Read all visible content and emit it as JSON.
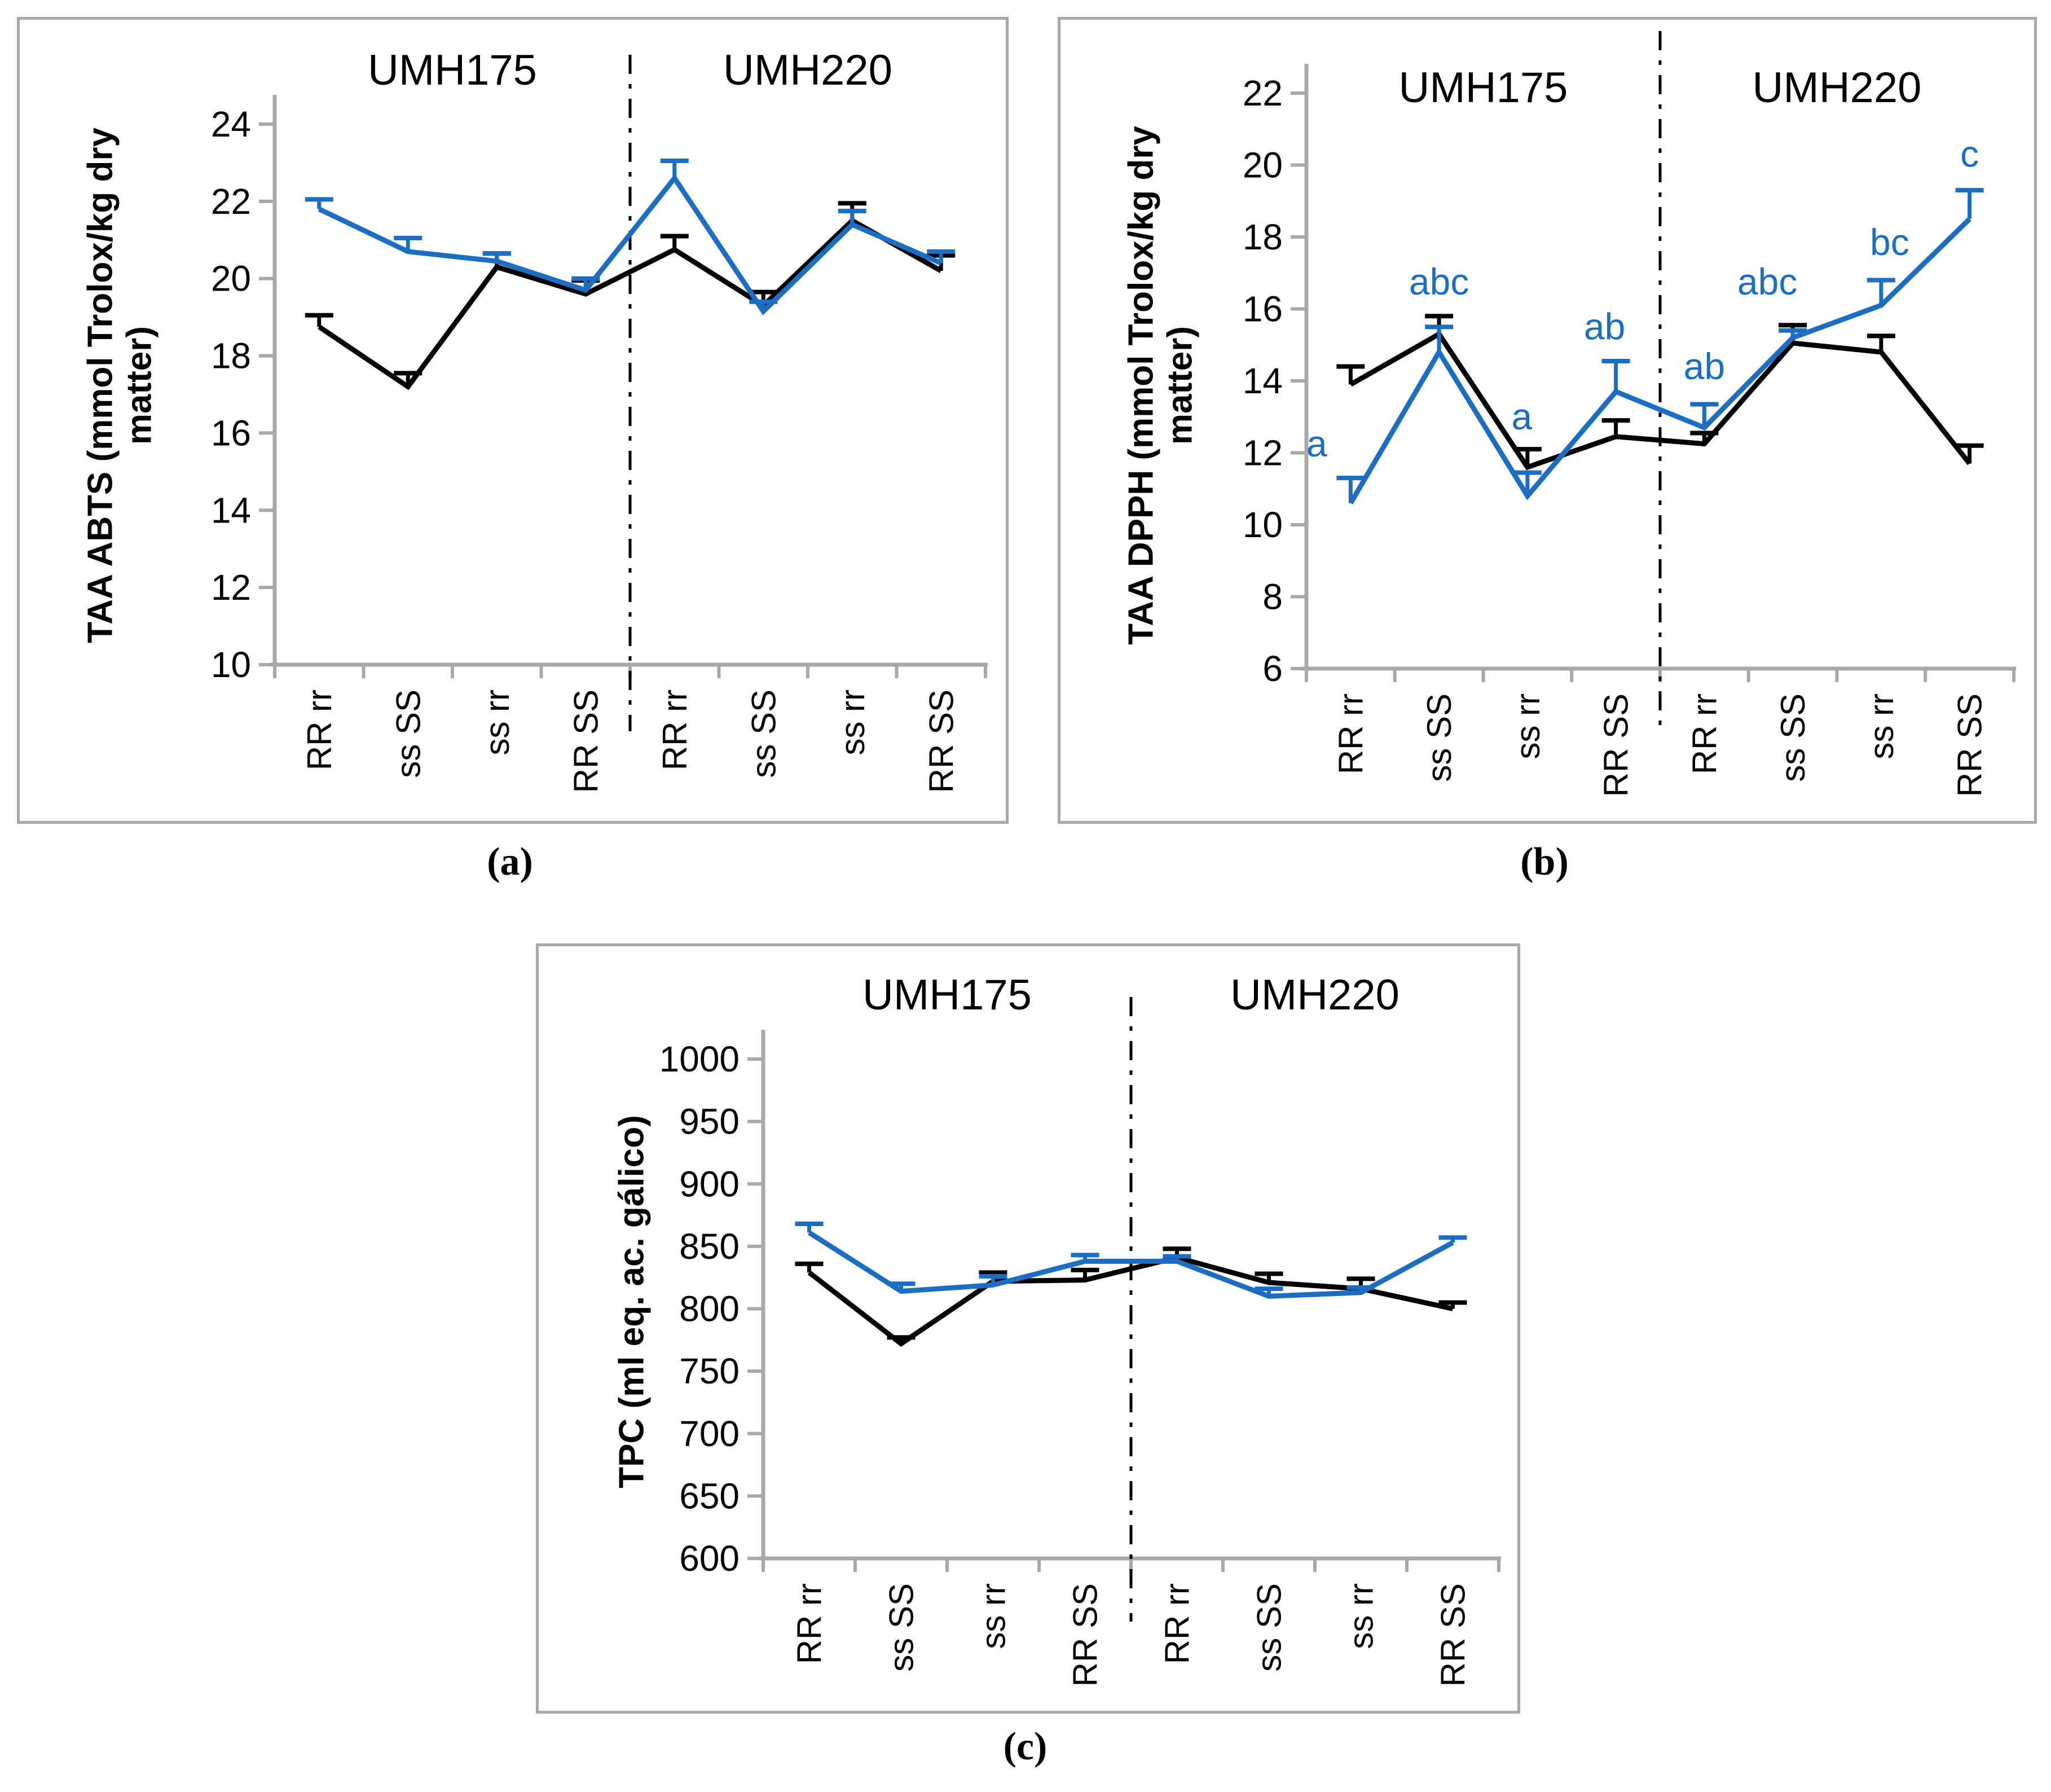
{
  "figure": {
    "description": "Three line charts comparing genotype combinations of UMH175 and UMH220",
    "colors": {
      "axis_gray": "#a8a8a8",
      "series_black": "#000000",
      "series_blue": "#1b6ec2",
      "divider": "#000000",
      "background": "#ffffff"
    }
  },
  "chart_data": [
    {
      "id": "a",
      "type": "line",
      "caption": "(a)",
      "ylabel": "TAA ABTS (mmol Trolox/kg dry matter)",
      "group_labels": [
        "UMH175",
        "UMH220"
      ],
      "categories": [
        "RR rr",
        "ss SS",
        "ss rr",
        "RR SS",
        "RR rr",
        "ss SS",
        "ss rr",
        "RR SS"
      ],
      "ylim": [
        10,
        24
      ],
      "yticks": [
        10,
        12,
        14,
        16,
        18,
        20,
        22,
        24
      ],
      "grid": false,
      "legend": "none",
      "divider_after_category": 4,
      "series": [
        {
          "name": "black",
          "color": "#000000",
          "values": [
            18.75,
            17.2,
            20.3,
            19.6,
            20.75,
            19.3,
            21.5,
            20.2
          ],
          "errors_up": [
            0.3,
            0.35,
            0.35,
            0.35,
            0.35,
            0.35,
            0.45,
            0.4
          ]
        },
        {
          "name": "blue",
          "color": "#1b6ec2",
          "values": [
            21.8,
            20.7,
            20.45,
            19.7,
            22.6,
            19.15,
            21.4,
            20.4
          ],
          "errors_up": [
            0.25,
            0.35,
            0.2,
            0.3,
            0.45,
            0.25,
            0.35,
            0.3
          ]
        }
      ],
      "annotations": []
    },
    {
      "id": "b",
      "type": "line",
      "caption": "(b)",
      "ylabel": "TAA DPPH (mmol Trolox/kg dry matter)",
      "group_labels": [
        "UMH175",
        "UMH220"
      ],
      "categories": [
        "RR rr",
        "ss SS",
        "ss rr",
        "RR SS",
        "RR rr",
        "ss SS",
        "ss rr",
        "RR SS"
      ],
      "ylim": [
        6,
        22
      ],
      "yticks": [
        6,
        8,
        10,
        12,
        14,
        16,
        18,
        20,
        22
      ],
      "grid": false,
      "legend": "none",
      "divider_after_category": 4,
      "series": [
        {
          "name": "black",
          "color": "#000000",
          "values": [
            13.9,
            15.3,
            11.6,
            12.45,
            12.25,
            15.05,
            14.8,
            11.7
          ],
          "errors_up": [
            0.5,
            0.5,
            0.5,
            0.45,
            0.3,
            0.5,
            0.45,
            0.5
          ]
        },
        {
          "name": "blue",
          "color": "#1b6ec2",
          "values": [
            10.6,
            14.8,
            10.8,
            13.7,
            12.7,
            15.2,
            16.1,
            18.5
          ],
          "errors_up": [
            0.7,
            0.7,
            0.65,
            0.85,
            0.65,
            0.2,
            0.7,
            0.8
          ]
        }
      ],
      "annotations": [
        {
          "category_index": 0,
          "text": "a",
          "y": 11.9,
          "dx": -60
        },
        {
          "category_index": 1,
          "text": "abc",
          "y": 16.4,
          "dx": 0
        },
        {
          "category_index": 2,
          "text": "a",
          "y": 12.65,
          "dx": -10
        },
        {
          "category_index": 3,
          "text": "ab",
          "y": 15.15,
          "dx": -20
        },
        {
          "category_index": 4,
          "text": "ab",
          "y": 14.05,
          "dx": 0
        },
        {
          "category_index": 5,
          "text": "abc",
          "y": 16.4,
          "dx": -45
        },
        {
          "category_index": 6,
          "text": "bc",
          "y": 17.5,
          "dx": 15
        },
        {
          "category_index": 7,
          "text": "c",
          "y": 19.95,
          "dx": 0
        }
      ]
    },
    {
      "id": "c",
      "type": "line",
      "caption": "(c)",
      "ylabel": "TPC (ml eq. ac. gálico)",
      "group_labels": [
        "UMH175",
        "UMH220"
      ],
      "categories": [
        "RR rr",
        "ss SS",
        "ss rr",
        "RR SS",
        "RR rr",
        "ss SS",
        "ss rr",
        "RR SS"
      ],
      "ylim": [
        600,
        1000
      ],
      "yticks": [
        600,
        650,
        700,
        750,
        800,
        850,
        900,
        950,
        1000
      ],
      "grid": false,
      "legend": "none",
      "divider_after_category": 4,
      "series": [
        {
          "name": "black",
          "color": "#000000",
          "values": [
            829,
            772,
            822,
            823,
            841,
            821,
            816,
            800
          ],
          "errors_up": [
            7,
            5,
            7,
            8,
            7,
            7,
            8,
            5
          ]
        },
        {
          "name": "blue",
          "color": "#1b6ec2",
          "values": [
            861,
            814,
            819,
            838,
            838,
            810,
            813,
            853
          ],
          "errors_up": [
            7,
            6,
            7,
            5,
            4,
            6,
            4,
            4
          ]
        }
      ],
      "annotations": []
    }
  ]
}
